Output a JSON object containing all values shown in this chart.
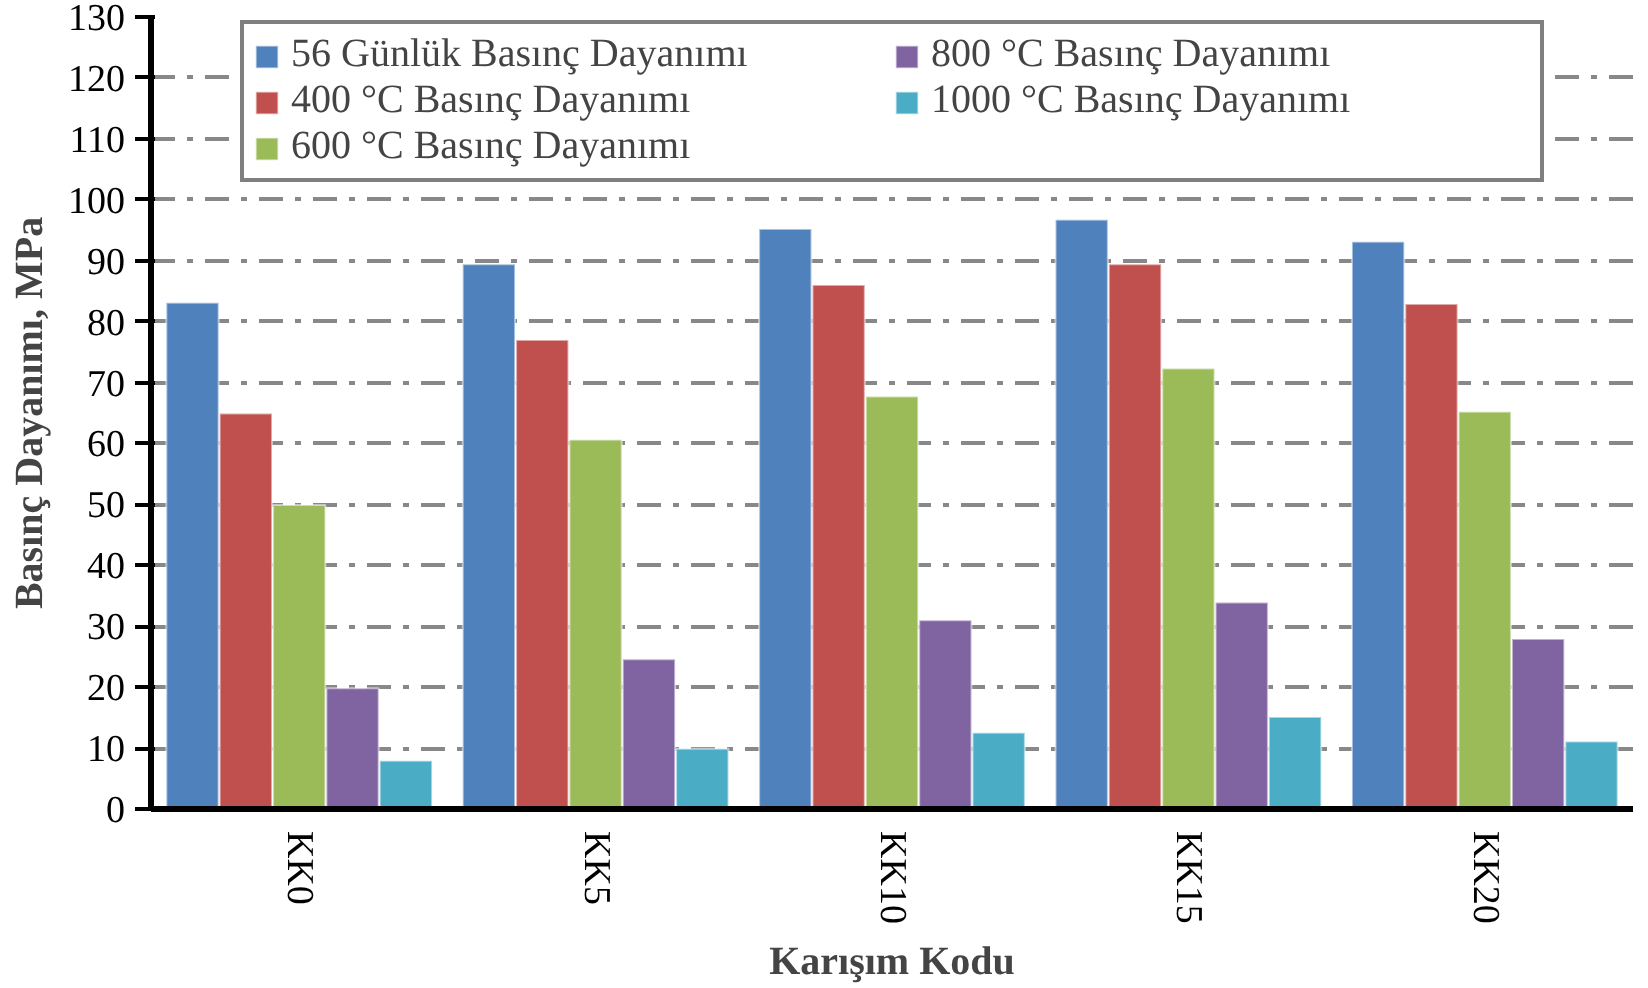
{
  "chart_data": {
    "type": "bar",
    "xlabel": "Karışım Kodu",
    "ylabel": "Basınç Dayanımı, MPa",
    "categories": [
      "KK0",
      "KK5",
      "KK10",
      "KK15",
      "KK20"
    ],
    "series": [
      {
        "name": "56 Günlük Basınç Dayanımı",
        "color": "#4f81bd",
        "values": [
          83.1,
          89.4,
          95.2,
          96.7,
          93.1
        ]
      },
      {
        "name": "400 °C Basınç Dayanımı",
        "color": "#c0504d",
        "values": [
          64.9,
          77.0,
          86.0,
          89.4,
          82.9
        ]
      },
      {
        "name": "600 °C Basınç Dayanımı",
        "color": "#9bbb59",
        "values": [
          49.9,
          60.6,
          67.7,
          72.3,
          65.2
        ]
      },
      {
        "name": "800 °C Basınç Dayanımı",
        "color": "#8064a2",
        "values": [
          19.8,
          24.6,
          31.0,
          33.9,
          27.9
        ]
      },
      {
        "name": "1000 °C Basınç Dayanımı",
        "color": "#4bacc6",
        "values": [
          7.9,
          9.9,
          12.5,
          15.1,
          11.1
        ]
      }
    ],
    "ylim": [
      0,
      130
    ],
    "yticks": [
      0,
      10,
      20,
      30,
      40,
      50,
      60,
      70,
      80,
      90,
      100,
      110,
      120,
      130
    ],
    "grid": "y",
    "legend": "top"
  }
}
